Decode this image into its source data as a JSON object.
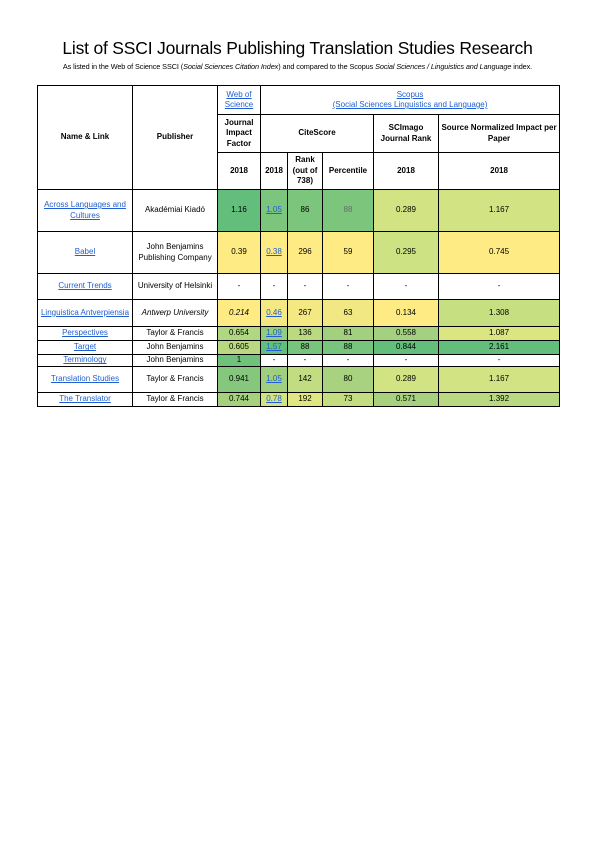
{
  "document": {
    "title": "List of SSCI Journals Publishing Translation Studies Research",
    "subtitle_prefix": "As listed in the Web of Science SSCI (",
    "subtitle_italic1": "Social Sciences Citation Index",
    "subtitle_middle": ") and compared to the Scopus ",
    "subtitle_italic2": "Social Sciences / Linguistics and Language",
    "subtitle_suffix": " index."
  },
  "table": {
    "headers": {
      "name": "Name & Link",
      "publisher": "Publisher",
      "wos_line1": "Web of",
      "wos_line2": "Science",
      "scopus_line1": "Scopus",
      "scopus_line2": "(Social Sciences Linguistics and Language)",
      "jif": "Journal Impact Factor",
      "citescore": "CiteScore",
      "sjr": "SCImago Journal Rank",
      "snip": "Source Normalized Impact per Paper",
      "rank": "Rank (out of 738)",
      "percentile": "Percentile",
      "year_jif": "2018",
      "year_cs": "2018",
      "year_sjr": "2018",
      "year_snip": "2018"
    },
    "rows": [
      {
        "name": "Across Languages and Cultures",
        "publisher": "Akadémiai Kiadó",
        "publisher_italic": false,
        "jif": "1.16",
        "jif_italic": false,
        "citescore": "1.05",
        "rank": "86",
        "percentile": "88",
        "sjr": "0.289",
        "snip": "1.167"
      },
      {
        "name": "Babel",
        "publisher": "John Benjamins Publishing Company",
        "publisher_italic": false,
        "jif": "0.39",
        "jif_italic": false,
        "citescore": "0.38",
        "rank": "296",
        "percentile": "59",
        "sjr": "0.295",
        "snip": "0.745"
      },
      {
        "name": "Current Trends",
        "publisher": "University of Helsinki",
        "publisher_italic": false,
        "jif": "-",
        "jif_italic": false,
        "citescore": "-",
        "rank": "-",
        "percentile": "-",
        "sjr": "-",
        "snip": "-"
      },
      {
        "name": "Linguistica Antverpiensia",
        "publisher": "Antwerp University",
        "publisher_italic": true,
        "jif": "0.214",
        "jif_italic": true,
        "citescore": "0.46",
        "rank": "267",
        "percentile": "63",
        "sjr": "0.134",
        "snip": "1.308"
      },
      {
        "name": "Perspectives",
        "publisher": "Taylor & Francis",
        "publisher_italic": false,
        "jif": "0.654",
        "jif_italic": false,
        "citescore": "1.09",
        "rank": "136",
        "percentile": "81",
        "sjr": "0.558",
        "snip": "1.087"
      },
      {
        "name": "Target",
        "publisher": "John Benjamins",
        "publisher_italic": false,
        "jif": "0.605",
        "jif_italic": false,
        "citescore": "1.57",
        "rank": "88",
        "percentile": "88",
        "sjr": "0.844",
        "snip": "2.161"
      },
      {
        "name": "Terminology",
        "publisher": "John Benjamins",
        "publisher_italic": false,
        "jif": "1",
        "jif_italic": false,
        "citescore": "-",
        "rank": "-",
        "percentile": "-",
        "sjr": "-",
        "snip": "-"
      },
      {
        "name": "Translation Studies",
        "publisher": "Taylor & Francis",
        "publisher_italic": false,
        "jif": "0.941",
        "jif_italic": false,
        "citescore": "1.05",
        "rank": "142",
        "percentile": "80",
        "sjr": "0.289",
        "snip": "1.167"
      },
      {
        "name": "The Translator",
        "publisher": "Taylor & Francis",
        "publisher_italic": false,
        "jif": "0.744",
        "jif_italic": false,
        "citescore": "0.78",
        "rank": "192",
        "percentile": "73",
        "sjr": "0.571",
        "snip": "1.392"
      }
    ],
    "cell_colors": [
      {
        "jif": "#63be7b",
        "cs": "#7cc57d",
        "rank": "#7cc57d",
        "pct": "#7cc57d",
        "sjr": "#d2e383",
        "snip": "#d2e383"
      },
      {
        "jif": "#ffeb84",
        "cs": "#ffeb84",
        "rank": "#ffeb84",
        "pct": "#ffeb84",
        "sjr": "#cde282",
        "snip": "#ffeb84"
      },
      {
        "jif": "#ffffff",
        "cs": "#ffffff",
        "rank": "#ffffff",
        "pct": "#ffffff",
        "sjr": "#ffffff",
        "snip": "#ffffff"
      },
      {
        "jif": "#ffeb84",
        "cs": "#f4e883",
        "rank": "#f4e883",
        "pct": "#f1e783",
        "sjr": "#ffeb84",
        "snip": "#c6df81"
      },
      {
        "jif": "#b1d780",
        "cs": "#93cc7e",
        "rank": "#bbda80",
        "pct": "#a3d07f",
        "sjr": "#a4d17f",
        "snip": "#dbe582"
      },
      {
        "jif": "#b9d980",
        "cs": "#63be7b",
        "rank": "#77c47d",
        "pct": "#77c47d",
        "sjr": "#63be7b",
        "snip": "#63be7b"
      },
      {
        "jif": "#6fc17c",
        "cs": "#ffffff",
        "rank": "#ffffff",
        "pct": "#ffffff",
        "sjr": "#ffffff",
        "snip": "#ffffff"
      },
      {
        "jif": "#85c87d",
        "cs": "#9fcf7f",
        "rank": "#c2dd81",
        "pct": "#a8d27f",
        "sjr": "#d2e383",
        "snip": "#d2e383"
      },
      {
        "jif": "#a5d17f",
        "cs": "#d2e383",
        "rank": "#dfe682",
        "pct": "#c4dd81",
        "sjr": "#a7d17f",
        "snip": "#b9d980"
      }
    ],
    "link_color": "#1f5fd1"
  }
}
